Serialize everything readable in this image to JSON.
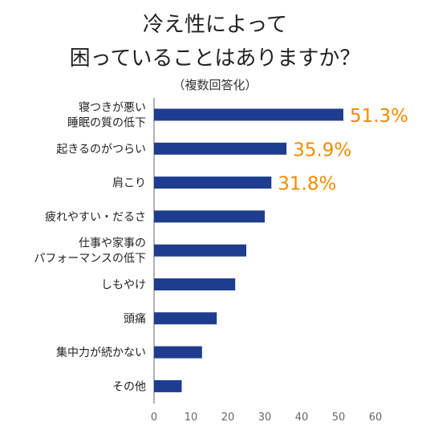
{
  "title_line1": "冷え性によって",
  "title_line2": "困っていることはありますか？",
  "subtitle": "（複数回答化）",
  "colors": {
    "bar": "#1f3d8f",
    "highlight": "#f08c00",
    "axis": "#999999",
    "text": "#222222"
  },
  "chart_data": {
    "type": "bar",
    "orientation": "horizontal",
    "categories": [
      [
        "寝つきが悪い",
        "睡眠の質の低下"
      ],
      [
        "起きるのがつらい"
      ],
      [
        "肩こり"
      ],
      [
        "疲れやすい・だるさ"
      ],
      [
        "仕事や家事の",
        "パフォーマンスの低下"
      ],
      [
        "しもやけ"
      ],
      [
        "頭痛"
      ],
      [
        "集中力が続かない"
      ],
      [
        "その他"
      ]
    ],
    "values": [
      51.3,
      35.9,
      31.8,
      30.0,
      25.0,
      22.0,
      17.0,
      13.0,
      7.5
    ],
    "data_labels": [
      "51.3%",
      "35.9%",
      "31.8%",
      "",
      "",
      "",
      "",
      "",
      ""
    ],
    "xlim": [
      0,
      60
    ],
    "xticks": [
      0,
      10,
      20,
      30,
      40,
      50,
      60
    ],
    "grid": false
  }
}
